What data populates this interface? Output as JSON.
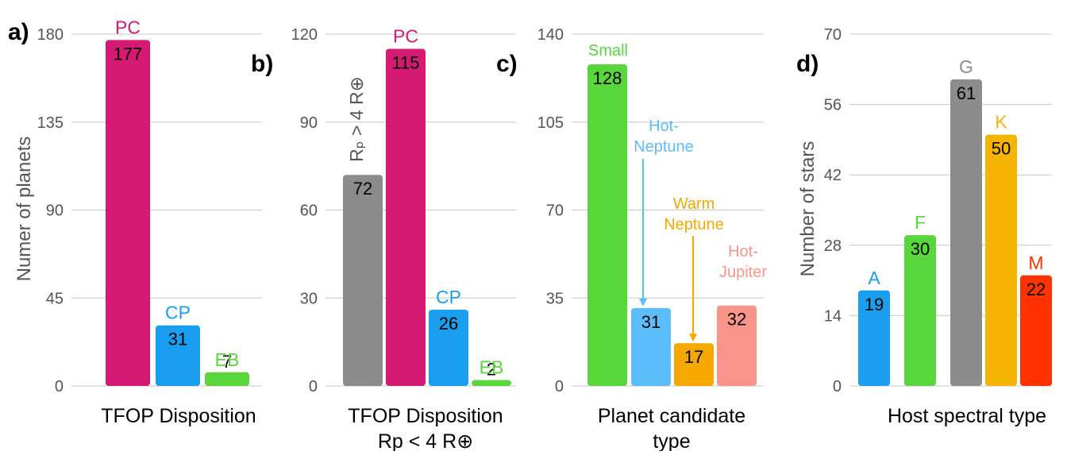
{
  "chart_data": [
    {
      "type": "bar",
      "panel_label": "a)",
      "categories": [
        "PC",
        "CP",
        "EB"
      ],
      "values": [
        177,
        31,
        7
      ],
      "colors": [
        "#d41a73",
        "#1a9ff0",
        "#5ad63d"
      ],
      "xlabel": "TFOP Disposition",
      "ylabel": "Numer of planets",
      "ylim": [
        0,
        180
      ],
      "yticks": [
        "0",
        "45",
        "90",
        "135",
        "180"
      ],
      "grid": true
    },
    {
      "type": "bar",
      "panel_label": "b)",
      "categories": [
        "",
        "PC",
        "CP",
        "EB"
      ],
      "values": [
        72,
        115,
        26,
        2
      ],
      "colors": [
        "#8c8c8c",
        "#d41a73",
        "#1a9ff0",
        "#5ad63d"
      ],
      "xlabel": "TFOP Disposition",
      "xlabel2": "Rp < 4 R⊕",
      "ylabel": "",
      "ylim": [
        0,
        120
      ],
      "yticks": [
        "0",
        "30",
        "60",
        "90",
        "120"
      ],
      "grid": true,
      "annotation": "Rₚ > 4 R⊕"
    },
    {
      "type": "bar",
      "panel_label": "c)",
      "categories": [
        "Small",
        "Hot-Neptune",
        "Warm Neptune",
        "Hot-Jupiter"
      ],
      "category_lines": [
        [
          "Small"
        ],
        [
          "Hot-",
          "Neptune"
        ],
        [
          "Warm",
          "Neptune"
        ],
        [
          "Hot-",
          "Jupiter"
        ]
      ],
      "values": [
        128,
        31,
        17,
        32
      ],
      "colors": [
        "#5ad63d",
        "#5bbdfa",
        "#f5a800",
        "#f9948a"
      ],
      "label_colors": [
        "#5ad63d",
        "#5bbdfa",
        "#f5a800",
        "#f9948a"
      ],
      "xlabel": "Planet candidate",
      "xlabel2": "type",
      "ylabel": "",
      "ylim": [
        0,
        140
      ],
      "yticks": [
        "0",
        "35",
        "70",
        "105",
        "140"
      ],
      "grid": true
    },
    {
      "type": "bar",
      "panel_label": "d)",
      "categories": [
        "A",
        "F",
        "G",
        "K",
        "M"
      ],
      "values": [
        19,
        30,
        61,
        50,
        22
      ],
      "colors": [
        "#1a9ff0",
        "#5ad63d",
        "#8c8c8c",
        "#f5b400",
        "#ff3300"
      ],
      "xlabel": "Host spectral type",
      "ylabel": "Number of stars",
      "ylim": [
        0,
        70
      ],
      "yticks": [
        "0",
        "14",
        "28",
        "42",
        "56",
        "70"
      ],
      "grid": true
    }
  ]
}
